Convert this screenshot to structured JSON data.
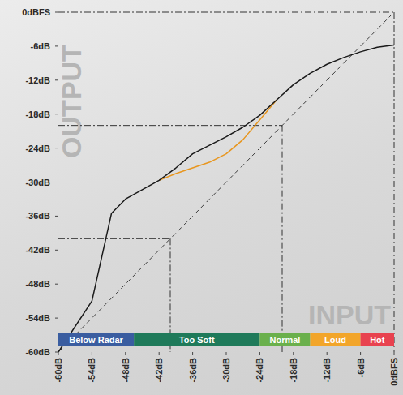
{
  "chart_data": {
    "type": "line",
    "x_label": "INPUT",
    "y_label": "OUTPUT",
    "x": [
      -60,
      -54,
      -50.5,
      -48,
      -42,
      -39,
      -36,
      -33,
      -30,
      -27,
      -24,
      -21,
      -18,
      -15,
      -12,
      -9,
      -6,
      -3,
      0
    ],
    "series": [
      {
        "color": "#3a3a3a",
        "line_style": "dashed",
        "values": [
          -60,
          -54,
          -50.5,
          -48,
          -42,
          -39,
          -36,
          -33,
          -30,
          -27,
          -24,
          -21,
          -18,
          -15,
          -12,
          -9,
          -6,
          -3,
          0
        ]
      },
      {
        "color": "#e8961e",
        "line_style": "solid",
        "values": [
          null,
          null,
          null,
          null,
          -29.7,
          -28.5,
          -27.5,
          -26.5,
          -25,
          -22.5,
          -19,
          -15.5,
          null,
          null,
          null,
          null,
          null,
          null,
          null
        ]
      },
      {
        "color": "#1a1a1a",
        "line_style": "solid",
        "values": [
          -60,
          -51,
          -35.5,
          -33,
          -29.7,
          -27.5,
          -25,
          -23.5,
          -22,
          -20.3,
          -18.2,
          -15.5,
          -12.8,
          -10.8,
          -9.2,
          -8,
          -7,
          -6.2,
          -5.8
        ]
      }
    ],
    "guides": [
      {
        "x": 0,
        "y": 0
      },
      {
        "x": -20,
        "y": -20
      },
      {
        "x": -40,
        "y": -40
      }
    ],
    "zones": [
      {
        "label": "Below Radar",
        "start": -60,
        "end": -46.5,
        "color": "#3a5da0"
      },
      {
        "label": "Too Soft",
        "start": -46.5,
        "end": -24,
        "color": "#1f7a5a"
      },
      {
        "label": "Normal",
        "start": -24,
        "end": -15,
        "color": "#6ab04c"
      },
      {
        "label": "Loud",
        "start": -15,
        "end": -6,
        "color": "#f2a52a"
      },
      {
        "label": "Hot",
        "start": -6,
        "end": 0,
        "color": "#e8424f"
      }
    ],
    "xlim": [
      -60,
      0
    ],
    "ylim": [
      -60,
      0
    ],
    "xticks": [
      {
        "value": -60,
        "label": "-60dB"
      },
      {
        "value": -54,
        "label": "-54dB"
      },
      {
        "value": -48,
        "label": "-48dB"
      },
      {
        "value": -42,
        "label": "-42dB"
      },
      {
        "value": -36,
        "label": "-36dB"
      },
      {
        "value": -30,
        "label": "-30dB"
      },
      {
        "value": -24,
        "label": "-24dB"
      },
      {
        "value": -18,
        "label": "-18dB"
      },
      {
        "value": -12,
        "label": "-12dB"
      },
      {
        "value": -6,
        "label": "-6dB"
      },
      {
        "value": 0,
        "label": "0dBFS"
      }
    ],
    "yticks": [
      {
        "value": 0,
        "label": "0dBFS"
      },
      {
        "value": -6,
        "label": "-6dB"
      },
      {
        "value": -12,
        "label": "-12dB"
      },
      {
        "value": -18,
        "label": "-18dB"
      },
      {
        "value": -24,
        "label": "-24dB"
      },
      {
        "value": -30,
        "label": "-30dB"
      },
      {
        "value": -36,
        "label": "-36dB"
      },
      {
        "value": -42,
        "label": "-42dB"
      },
      {
        "value": -48,
        "label": "-48dB"
      },
      {
        "value": -54,
        "label": "-54dB"
      },
      {
        "value": -60,
        "label": "-60dB"
      }
    ],
    "grid": false
  }
}
